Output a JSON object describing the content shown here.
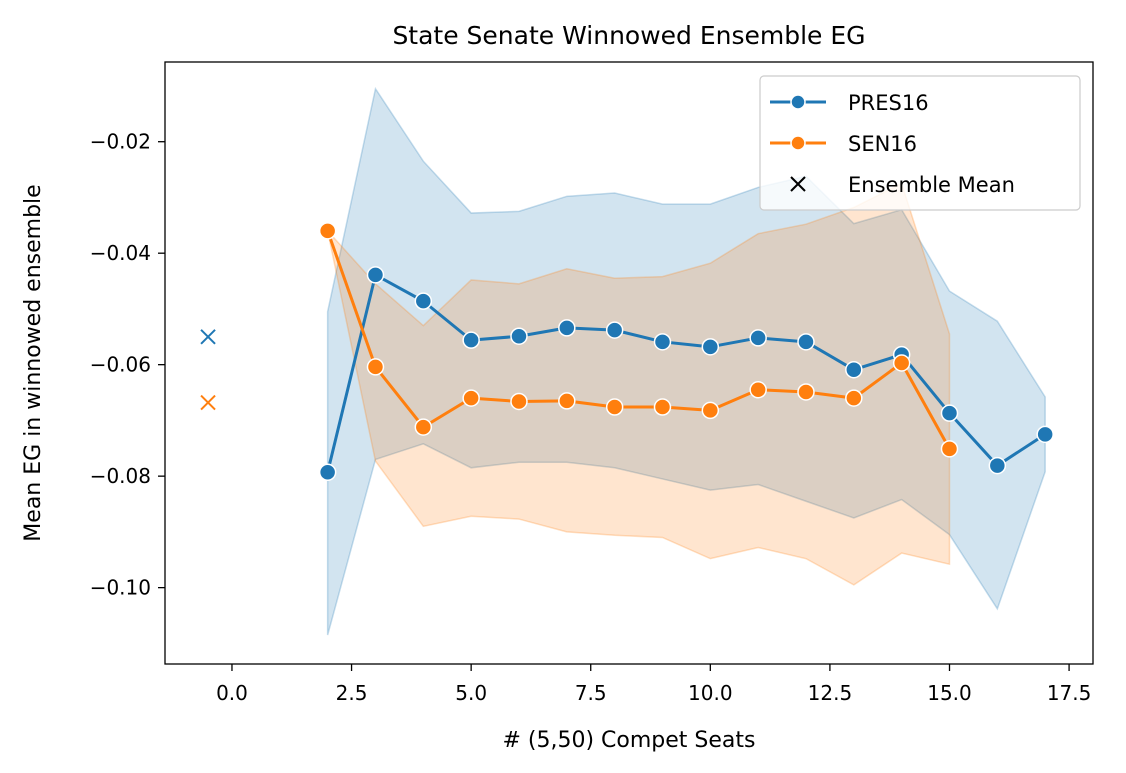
{
  "chart_data": {
    "type": "line",
    "title": "State Senate Winnowed Ensemble EG",
    "xlabel": "# (5,50) Compet Seats",
    "ylabel": "Mean EG in winnowed ensemble",
    "xlim": [
      -1.4,
      18.0
    ],
    "ylim": [
      -0.1137,
      -0.0057
    ],
    "xticks": [
      0.0,
      2.5,
      5.0,
      7.5,
      10.0,
      12.5,
      15.0,
      17.5
    ],
    "xtick_labels": [
      "0.0",
      "2.5",
      "5.0",
      "7.5",
      "10.0",
      "12.5",
      "15.0",
      "17.5"
    ],
    "yticks": [
      -0.1,
      -0.08,
      -0.06,
      -0.04,
      -0.02
    ],
    "ytick_labels": [
      "−0.10",
      "−0.08",
      "−0.06",
      "−0.04",
      "−0.02"
    ],
    "grid": false,
    "legend_position": "top-right",
    "series": [
      {
        "name": "PRES16",
        "color": "#1f77b4",
        "x": [
          2,
          3,
          4,
          5,
          6,
          7,
          8,
          9,
          10,
          11,
          12,
          13,
          14,
          15,
          16,
          17
        ],
        "values": [
          -0.0793,
          -0.0439,
          -0.0486,
          -0.0556,
          -0.0549,
          -0.0534,
          -0.0538,
          -0.0559,
          -0.0568,
          -0.0552,
          -0.0559,
          -0.0609,
          -0.0582,
          -0.0687,
          -0.0781,
          -0.0725
        ],
        "band_upper": [
          -0.0505,
          -0.0105,
          -0.0235,
          -0.0328,
          -0.0325,
          -0.0298,
          -0.0292,
          -0.0312,
          -0.0312,
          -0.0282,
          -0.0262,
          -0.0347,
          -0.0322,
          -0.0468,
          -0.0522,
          -0.0658
        ],
        "band_lower": [
          -0.1085,
          -0.077,
          -0.0742,
          -0.0785,
          -0.0775,
          -0.0775,
          -0.0785,
          -0.0805,
          -0.0825,
          -0.0815,
          -0.0845,
          -0.0875,
          -0.0842,
          -0.0905,
          -0.1038,
          -0.0792
        ]
      },
      {
        "name": "SEN16",
        "color": "#ff7f0e",
        "x": [
          2,
          3,
          4,
          5,
          6,
          7,
          8,
          9,
          10,
          11,
          12,
          13,
          14,
          15
        ],
        "values": [
          -0.036,
          -0.0604,
          -0.0712,
          -0.066,
          -0.0666,
          -0.0665,
          -0.0676,
          -0.0676,
          -0.0682,
          -0.0645,
          -0.0649,
          -0.066,
          -0.0597,
          -0.0751
        ],
        "band_upper": [
          -0.036,
          -0.0455,
          -0.053,
          -0.0448,
          -0.0455,
          -0.0428,
          -0.0445,
          -0.0442,
          -0.0418,
          -0.0365,
          -0.0348,
          -0.0318,
          -0.0275,
          -0.0545
        ],
        "band_lower": [
          -0.036,
          -0.0773,
          -0.089,
          -0.0872,
          -0.0877,
          -0.09,
          -0.0906,
          -0.091,
          -0.0948,
          -0.0928,
          -0.0948,
          -0.0995,
          -0.0938,
          -0.0958
        ]
      }
    ],
    "ensemble_mean": {
      "name": "Ensemble Mean",
      "x": -0.5,
      "points": [
        {
          "y": -0.055,
          "color": "#1f77b4"
        },
        {
          "y": -0.0668,
          "color": "#ff7f0e"
        }
      ]
    }
  }
}
